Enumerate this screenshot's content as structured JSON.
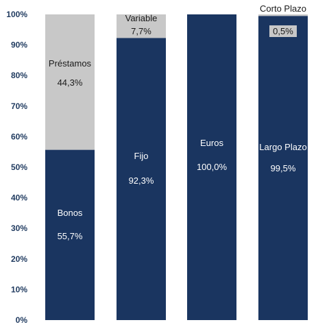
{
  "chart_data": {
    "type": "bar",
    "stacked": true,
    "ylim": [
      0,
      100
    ],
    "y_ticks": [
      "0%",
      "10%",
      "20%",
      "30%",
      "40%",
      "50%",
      "60%",
      "70%",
      "80%",
      "90%",
      "100%"
    ],
    "grid": false,
    "legend": "none",
    "colors": {
      "dark": "#1a3560",
      "light": "#c8c8c8",
      "text_on_dark": "#ffffff",
      "text_on_light": "#1a1a1a",
      "axis_text": "#1f3a5f"
    },
    "bars": [
      {
        "segments": [
          {
            "name": "Bonos",
            "value": 55.7,
            "label": "55,7%",
            "color": "dark"
          },
          {
            "name": "Préstamos",
            "value": 44.3,
            "label": "44,3%",
            "color": "light"
          }
        ]
      },
      {
        "segments": [
          {
            "name": "Fijo",
            "value": 92.3,
            "label": "92,3%",
            "color": "dark"
          },
          {
            "name": "Variable",
            "value": 7.7,
            "label": "7,7%",
            "color": "light"
          }
        ]
      },
      {
        "segments": [
          {
            "name": "Euros",
            "value": 100.0,
            "label": "100,0%",
            "color": "dark"
          }
        ]
      },
      {
        "segments": [
          {
            "name": "Largo Plazo",
            "value": 99.5,
            "label": "99,5%",
            "color": "dark"
          },
          {
            "name": "Corto Plazo",
            "value": 0.5,
            "label": "0,5%",
            "color": "light"
          }
        ]
      }
    ]
  }
}
